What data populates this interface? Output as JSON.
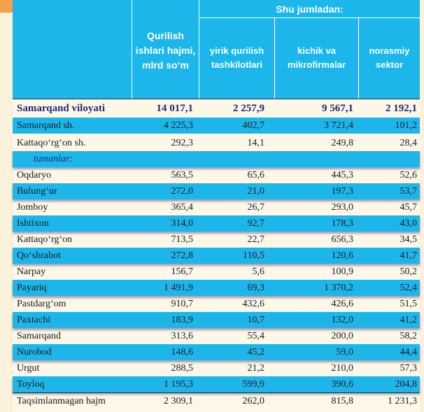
{
  "header": {
    "col1": "Qurilish ishlari hajmi, mlrd so‘m",
    "group_title": "Shu jumladan:",
    "col2": "yirik qurilish tashkilotlari",
    "col3": "kichik va mikrofirmalar",
    "col4": "norasmiy sektor"
  },
  "region": {
    "name": "Samarqand viloyati",
    "v1": "14 017,1",
    "v2": "2 257,9",
    "v3": "9 567,1",
    "v4": "2 192,1"
  },
  "cities": [
    {
      "name": "Samarqand sh.",
      "v1": "4 225,3",
      "v2": "402,7",
      "v3": "3 721,4",
      "v4": "101,2"
    },
    {
      "name": "Kattaqo‘rg‘on sh.",
      "v1": "292,3",
      "v2": "14,1",
      "v3": "249,8",
      "v4": "28,4"
    }
  ],
  "districts_label": "tumanlar:",
  "districts": [
    {
      "name": "Oqdaryo",
      "v1": "563,5",
      "v2": "65,6",
      "v3": "445,3",
      "v4": "52,6"
    },
    {
      "name": "Bulung‘ur",
      "v1": "272,0",
      "v2": "21,0",
      "v3": "197,3",
      "v4": "53,7"
    },
    {
      "name": "Jomboy",
      "v1": "365,4",
      "v2": "26,7",
      "v3": "293,0",
      "v4": "45,7"
    },
    {
      "name": "Ishtixon",
      "v1": "314,0",
      "v2": "92,7",
      "v3": "178,3",
      "v4": "43,0"
    },
    {
      "name": "Kattaqo‘rg‘on",
      "v1": "713,5",
      "v2": "22,7",
      "v3": "656,3",
      "v4": "34,5"
    },
    {
      "name": "Qo‘shrabot",
      "v1": "272,8",
      "v2": "110,5",
      "v3": "120,6",
      "v4": "41,7"
    },
    {
      "name": "Narpay",
      "v1": "156,7",
      "v2": "5,6",
      "v3": "100,9",
      "v4": "50,2"
    },
    {
      "name": "Payariq",
      "v1": "1 491,9",
      "v2": "69,3",
      "v3": "1 370,2",
      "v4": "52,4"
    },
    {
      "name": "Pastdarg‘om",
      "v1": "910,7",
      "v2": "432,6",
      "v3": "426,6",
      "v4": "51,5"
    },
    {
      "name": "Paxtachi",
      "v1": "183,9",
      "v2": "10,7",
      "v3": "132,0",
      "v4": "41,2"
    },
    {
      "name": "Samarqand",
      "v1": "313,6",
      "v2": "55,4",
      "v3": "200,0",
      "v4": "58,2"
    },
    {
      "name": "Nurobod",
      "v1": "148,6",
      "v2": "45,2",
      "v3": "59,0",
      "v4": "44,4"
    },
    {
      "name": "Urgut",
      "v1": "288,5",
      "v2": "21,2",
      "v3": "210,0",
      "v4": "57,3"
    },
    {
      "name": "Toyloq",
      "v1": "1 195,3",
      "v2": "599,9",
      "v3": "390,6",
      "v4": "204,8"
    }
  ],
  "unallocated": {
    "name": "Taqsimlanmagan hajm",
    "v1": "2 309,1",
    "v2": "262,0",
    "v3": "815,8",
    "v4": "1 231,3"
  },
  "colors": {
    "header_bg": "#1db6ea",
    "region_text": "#1f2b6c",
    "page_bg": "#fdf7e8"
  }
}
